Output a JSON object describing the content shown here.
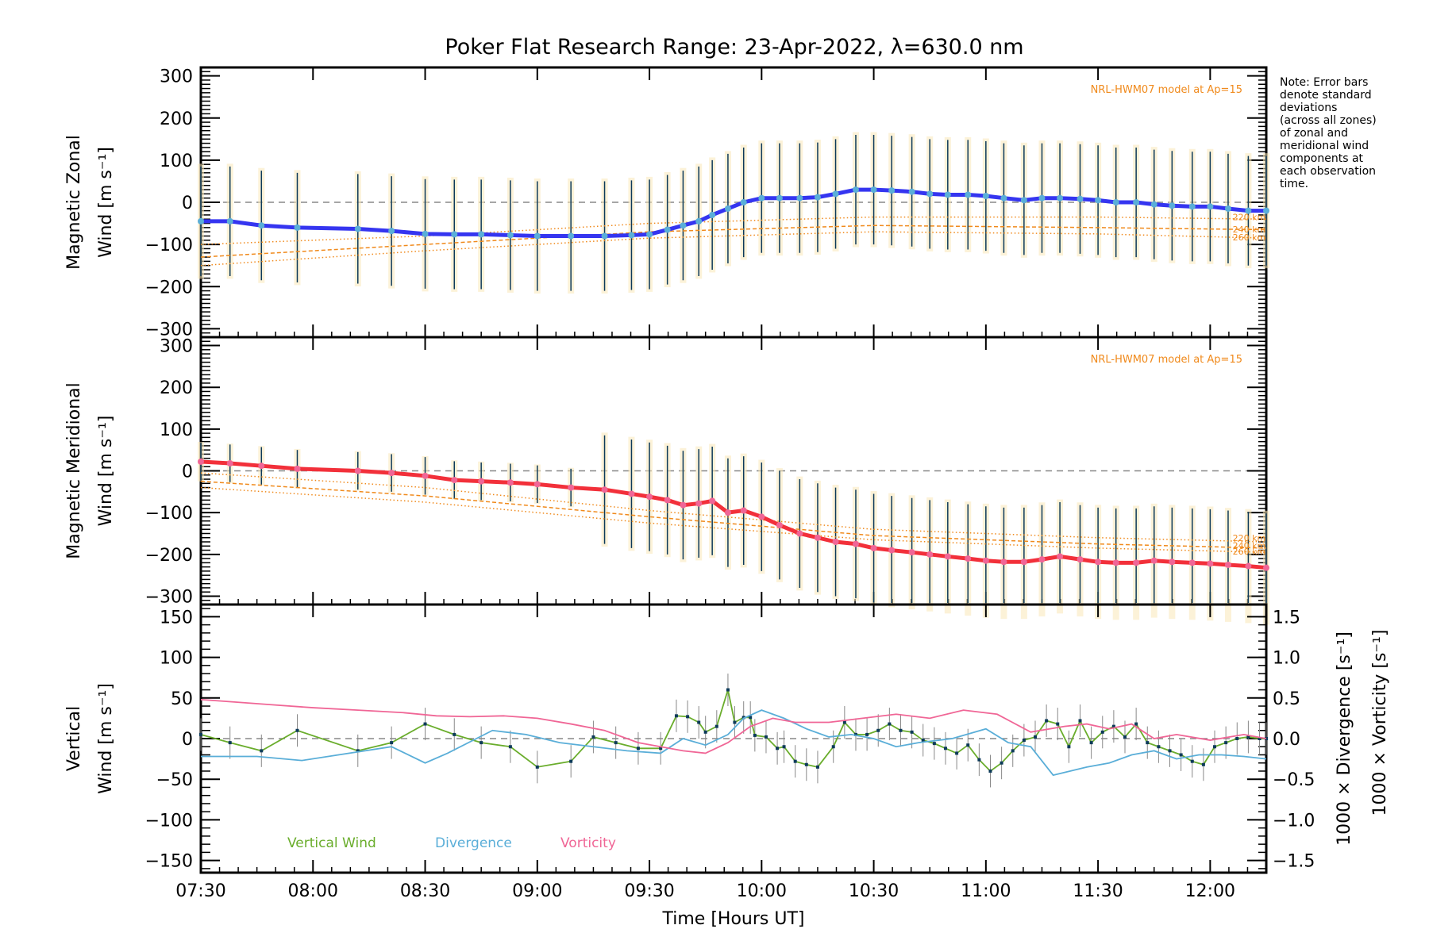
{
  "chart_data": [
    {
      "type": "line",
      "title": "Poker Flat Research Range: 23-Apr-2022, λ=630.0 nm",
      "panel": "zonal",
      "ylabel_line1": "Magnetic Zonal",
      "ylabel_line2": "Wind [m s⁻¹]",
      "ylim": [
        -320,
        320
      ],
      "yticks": [
        300,
        200,
        100,
        0,
        -100,
        -200,
        -300
      ],
      "ytick_labels": [
        "300",
        "200",
        "100",
        "0",
        "−100",
        "−200",
        "−300"
      ],
      "model_label": "NRL-HWM07 model at Ap=15",
      "model_altitudes": [
        "220 km",
        "240 km",
        "260 km"
      ],
      "series": [
        {
          "name": "Zonal wind",
          "color": "#3535f0",
          "x": [
            7.5,
            7.63,
            7.77,
            7.93,
            8.2,
            8.35,
            8.5,
            8.63,
            8.75,
            8.88,
            9.0,
            9.15,
            9.3,
            9.42,
            9.5,
            9.58,
            9.65,
            9.72,
            9.78,
            9.85,
            9.92,
            10.0,
            10.08,
            10.17,
            10.25,
            10.33,
            10.42,
            10.5,
            10.58,
            10.67,
            10.75,
            10.83,
            10.92,
            11.0,
            11.08,
            11.17,
            11.25,
            11.33,
            11.42,
            11.5,
            11.58,
            11.67,
            11.75,
            11.83,
            11.92,
            12.0,
            12.08,
            12.17,
            12.25
          ],
          "y": [
            -45,
            -45,
            -55,
            -60,
            -63,
            -68,
            -75,
            -76,
            -76,
            -78,
            -80,
            -80,
            -80,
            -78,
            -76,
            -65,
            -55,
            -45,
            -30,
            -15,
            0,
            10,
            10,
            10,
            12,
            20,
            30,
            30,
            28,
            25,
            20,
            18,
            18,
            15,
            10,
            5,
            10,
            10,
            8,
            5,
            0,
            0,
            -5,
            -8,
            -10,
            -10,
            -15,
            -20,
            -20
          ]
        },
        {
          "name": "HWM07 220 km",
          "color": "#f08a1c",
          "style": "dotted",
          "x": [
            7.5,
            8.5,
            9.5,
            10.5,
            11.5,
            12.25
          ],
          "y": [
            -100,
            -80,
            -50,
            -35,
            -35,
            -40
          ]
        },
        {
          "name": "HWM07 240 km",
          "color": "#f08a1c",
          "style": "dashed",
          "x": [
            7.5,
            8.5,
            9.5,
            10.5,
            11.5,
            12.25
          ],
          "y": [
            -130,
            -100,
            -70,
            -55,
            -60,
            -65
          ]
        },
        {
          "name": "HWM07 260 km",
          "color": "#f08a1c",
          "style": "dotted",
          "x": [
            7.5,
            8.5,
            9.5,
            10.5,
            11.5,
            12.25
          ],
          "y": [
            -150,
            -115,
            -85,
            -70,
            -75,
            -85
          ]
        }
      ],
      "errorbars": {
        "std_approx": 130
      }
    },
    {
      "type": "line",
      "panel": "meridional",
      "ylabel_line1": "Magnetic Meridional",
      "ylabel_line2": "Wind [m s⁻¹]",
      "ylim": [
        -320,
        320
      ],
      "yticks": [
        300,
        200,
        100,
        0,
        -100,
        -200,
        -300
      ],
      "ytick_labels": [
        "300",
        "200",
        "100",
        "0",
        "−100",
        "−200",
        "−300"
      ],
      "model_label": "NRL-HWM07 model at Ap=15",
      "model_altitudes": [
        "220 km",
        "240 km",
        "260 km"
      ],
      "series": [
        {
          "name": "Meridional wind",
          "color": "#f2303a",
          "x": [
            7.5,
            7.63,
            7.77,
            7.93,
            8.2,
            8.35,
            8.5,
            8.63,
            8.75,
            8.88,
            9.0,
            9.15,
            9.3,
            9.42,
            9.5,
            9.58,
            9.65,
            9.72,
            9.78,
            9.85,
            9.92,
            10.0,
            10.08,
            10.17,
            10.25,
            10.33,
            10.42,
            10.5,
            10.58,
            10.67,
            10.75,
            10.83,
            10.92,
            11.0,
            11.08,
            11.17,
            11.25,
            11.33,
            11.42,
            11.5,
            11.58,
            11.67,
            11.75,
            11.83,
            11.92,
            12.0,
            12.08,
            12.17,
            12.25
          ],
          "y": [
            22,
            18,
            12,
            5,
            0,
            -5,
            -12,
            -22,
            -25,
            -28,
            -32,
            -40,
            -45,
            -55,
            -62,
            -70,
            -82,
            -78,
            -72,
            -100,
            -95,
            -110,
            -130,
            -150,
            -160,
            -170,
            -175,
            -185,
            -190,
            -195,
            -200,
            -205,
            -210,
            -215,
            -218,
            -218,
            -212,
            -205,
            -212,
            -218,
            -220,
            -220,
            -215,
            -218,
            -220,
            -222,
            -225,
            -228,
            -232
          ]
        },
        {
          "name": "HWM07 220 km",
          "color": "#f08a1c",
          "style": "dotted",
          "x": [
            7.5,
            8.5,
            9.5,
            10.5,
            11.5,
            12.25
          ],
          "y": [
            -5,
            -40,
            -95,
            -140,
            -160,
            -170
          ]
        },
        {
          "name": "HWM07 240 km",
          "color": "#f08a1c",
          "style": "dashed",
          "x": [
            7.5,
            8.5,
            9.5,
            10.5,
            11.5,
            12.25
          ],
          "y": [
            -25,
            -60,
            -110,
            -155,
            -175,
            -185
          ]
        },
        {
          "name": "HWM07 260 km",
          "color": "#f08a1c",
          "style": "dotted",
          "x": [
            7.5,
            8.5,
            9.5,
            10.5,
            11.5,
            12.25
          ],
          "y": [
            -40,
            -75,
            -125,
            -165,
            -185,
            -195
          ]
        }
      ]
    },
    {
      "type": "line",
      "panel": "vertical",
      "ylabel_line1": "Vertical",
      "ylabel_line2": "Wind [m s⁻¹]",
      "ylim": [
        -165,
        165
      ],
      "yticks": [
        150,
        100,
        50,
        0,
        -50,
        -100,
        -150
      ],
      "ytick_labels": [
        "150",
        "100",
        "50",
        "0",
        "−50",
        "−100",
        "−150"
      ],
      "y2label_div": "1000 × Divergence [s⁻¹]",
      "y2label_vort": "1000 × Vorticity [s⁻¹]",
      "y2lim": [
        -1.65,
        1.65
      ],
      "y2ticks": [
        1.5,
        1.0,
        0.5,
        0.0,
        -0.5,
        -1.0,
        -1.5
      ],
      "y2tick_labels": [
        "1.5",
        "1.0",
        "0.5",
        "0.0",
        "−0.5",
        "−1.0",
        "−1.5"
      ],
      "legend": [
        "Vertical Wind",
        "Divergence",
        "Vorticity"
      ],
      "legend_colors": [
        "#6aad2c",
        "#5aaed8",
        "#f06696"
      ],
      "series": [
        {
          "name": "Vertical Wind",
          "axis": "left",
          "color": "#6aad2c",
          "x": [
            7.5,
            7.63,
            7.77,
            7.93,
            8.2,
            8.35,
            8.5,
            8.63,
            8.75,
            8.88,
            9.0,
            9.15,
            9.25,
            9.35,
            9.45,
            9.55,
            9.62,
            9.67,
            9.72,
            9.75,
            9.8,
            9.85,
            9.88,
            9.92,
            9.95,
            9.97,
            10.02,
            10.07,
            10.1,
            10.15,
            10.2,
            10.25,
            10.32,
            10.37,
            10.42,
            10.47,
            10.52,
            10.57,
            10.62,
            10.67,
            10.72,
            10.77,
            10.82,
            10.87,
            10.92,
            10.97,
            11.02,
            11.07,
            11.12,
            11.17,
            11.22,
            11.27,
            11.32,
            11.37,
            11.42,
            11.47,
            11.52,
            11.57,
            11.62,
            11.67,
            11.72,
            11.77,
            11.82,
            11.87,
            11.92,
            11.97,
            12.02,
            12.07,
            12.12,
            12.17,
            12.22,
            12.25
          ],
          "y": [
            5,
            -5,
            -15,
            10,
            -15,
            -5,
            18,
            5,
            -5,
            -10,
            -35,
            -28,
            2,
            -5,
            -12,
            -12,
            28,
            27,
            20,
            8,
            15,
            60,
            20,
            26,
            26,
            4,
            2,
            -12,
            -10,
            -28,
            -32,
            -35,
            -10,
            20,
            5,
            5,
            10,
            18,
            10,
            8,
            -2,
            -6,
            -12,
            -18,
            -8,
            -26,
            -40,
            -30,
            -15,
            -2,
            2,
            22,
            18,
            -10,
            22,
            -5,
            8,
            15,
            2,
            18,
            -5,
            -10,
            -15,
            -20,
            -28,
            -32,
            -10,
            -5,
            0,
            2,
            0,
            0
          ]
        },
        {
          "name": "Divergence",
          "axis": "right",
          "color": "#5aaed8",
          "x": [
            7.5,
            7.75,
            7.95,
            8.35,
            8.5,
            8.6,
            8.8,
            8.95,
            9.1,
            9.25,
            9.4,
            9.55,
            9.65,
            9.75,
            9.85,
            9.92,
            10.0,
            10.1,
            10.2,
            10.3,
            10.4,
            10.5,
            10.6,
            10.7,
            10.85,
            11.0,
            11.1,
            11.2,
            11.3,
            11.45,
            11.55,
            11.65,
            11.75,
            11.85,
            11.95,
            12.05,
            12.15,
            12.25
          ],
          "y": [
            -0.22,
            -0.22,
            -0.27,
            -0.1,
            -0.3,
            -0.18,
            0.1,
            0.05,
            -0.05,
            -0.1,
            -0.15,
            -0.18,
            0.0,
            -0.08,
            0.05,
            0.25,
            0.35,
            0.25,
            0.12,
            0.02,
            0.05,
            0.0,
            -0.1,
            -0.05,
            0.0,
            0.12,
            -0.05,
            -0.1,
            -0.45,
            -0.35,
            -0.3,
            -0.2,
            -0.15,
            -0.25,
            -0.2,
            -0.2,
            -0.22,
            -0.25
          ]
        },
        {
          "name": "Vorticity",
          "axis": "right",
          "color": "#f06696",
          "x": [
            7.5,
            7.65,
            7.8,
            8.0,
            8.2,
            8.4,
            8.55,
            8.7,
            8.85,
            9.0,
            9.15,
            9.3,
            9.45,
            9.55,
            9.65,
            9.75,
            9.85,
            9.95,
            10.05,
            10.15,
            10.3,
            10.45,
            10.6,
            10.75,
            10.9,
            11.05,
            11.2,
            11.35,
            11.45,
            11.55,
            11.65,
            11.75,
            11.85,
            12.0,
            12.15,
            12.25
          ],
          "y": [
            0.48,
            0.45,
            0.42,
            0.38,
            0.35,
            0.32,
            0.28,
            0.27,
            0.28,
            0.25,
            0.18,
            0.1,
            -0.05,
            -0.1,
            -0.15,
            -0.18,
            -0.05,
            0.15,
            0.25,
            0.2,
            0.2,
            0.25,
            0.3,
            0.25,
            0.35,
            0.3,
            0.08,
            0.15,
            0.18,
            0.12,
            0.18,
            0.0,
            0.05,
            -0.02,
            0.05,
            0.0
          ]
        }
      ]
    }
  ],
  "note_lines": [
    "Note: Error bars",
    "denote standard",
    "deviations",
    "(across all zones)",
    "of zonal and",
    "meridional wind",
    "components at",
    "each observation",
    "time."
  ],
  "xaxis": {
    "label": "Time [Hours UT]",
    "xlim": [
      7.5,
      12.25
    ],
    "ticks": [
      7.5,
      8.0,
      8.5,
      9.0,
      9.5,
      10.0,
      10.5,
      11.0,
      11.5,
      12.0
    ],
    "tick_labels": [
      "07:30",
      "08:00",
      "08:30",
      "09:00",
      "09:30",
      "10:00",
      "10:30",
      "11:00",
      "11:30",
      "12:00"
    ]
  }
}
